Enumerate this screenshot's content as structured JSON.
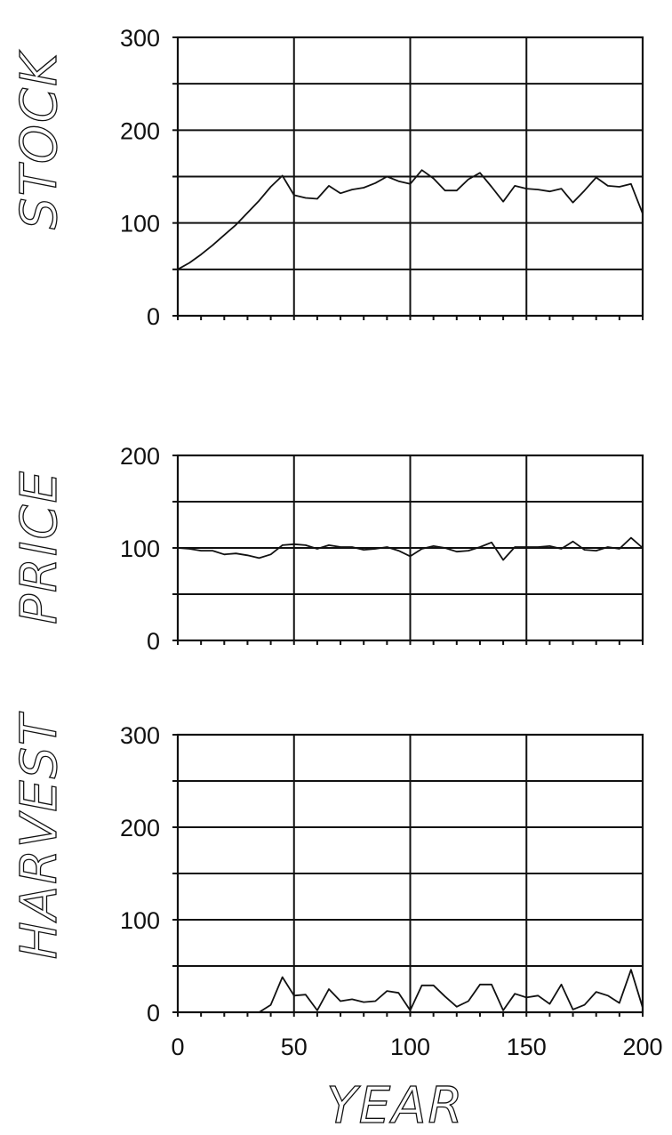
{
  "chart_data": [
    {
      "type": "line",
      "ylabel": "STOCK",
      "xlabel": "",
      "xlim": [
        0,
        200
      ],
      "ylim": [
        0,
        300
      ],
      "yticks": [
        0,
        100,
        200,
        300
      ],
      "grid": true,
      "x": [
        0,
        5,
        10,
        15,
        20,
        25,
        30,
        35,
        40,
        45,
        50,
        55,
        60,
        65,
        70,
        75,
        80,
        85,
        90,
        95,
        100,
        105,
        110,
        115,
        120,
        125,
        130,
        135,
        140,
        145,
        150,
        155,
        160,
        165,
        170,
        175,
        180,
        185,
        190,
        195,
        200
      ],
      "values": [
        50,
        57,
        66,
        76,
        87,
        98,
        111,
        124,
        139,
        151,
        130,
        127,
        126,
        140,
        132,
        136,
        138,
        143,
        150,
        145,
        142,
        157,
        148,
        135,
        135,
        147,
        154,
        139,
        123,
        140,
        137,
        136,
        134,
        137,
        122,
        135,
        149,
        140,
        139,
        142,
        110
      ]
    },
    {
      "type": "line",
      "ylabel": "PRICE",
      "xlabel": "",
      "xlim": [
        0,
        200
      ],
      "ylim": [
        0,
        200
      ],
      "yticks": [
        0,
        100,
        200
      ],
      "grid": true,
      "x": [
        0,
        5,
        10,
        15,
        20,
        25,
        30,
        35,
        40,
        45,
        50,
        55,
        60,
        65,
        70,
        75,
        80,
        85,
        90,
        95,
        100,
        105,
        110,
        115,
        120,
        125,
        130,
        135,
        140,
        145,
        150,
        155,
        160,
        165,
        170,
        175,
        180,
        185,
        190,
        195,
        200
      ],
      "values": [
        100,
        99,
        97,
        97,
        93,
        94,
        92,
        89,
        93,
        103,
        104,
        103,
        99,
        103,
        101,
        101,
        98,
        99,
        101,
        97,
        91,
        99,
        102,
        100,
        96,
        97,
        101,
        106,
        87,
        101,
        101,
        101,
        102,
        99,
        107,
        98,
        97,
        101,
        99,
        111,
        100
      ]
    },
    {
      "type": "line",
      "ylabel": "HARVEST",
      "xlabel": "YEAR",
      "xlim": [
        0,
        200
      ],
      "ylim": [
        0,
        300
      ],
      "yticks": [
        0,
        100,
        200,
        300
      ],
      "xticks": [
        0,
        50,
        100,
        150,
        200
      ],
      "grid": true,
      "x": [
        0,
        5,
        10,
        15,
        20,
        25,
        30,
        35,
        40,
        45,
        50,
        55,
        60,
        65,
        70,
        75,
        80,
        85,
        90,
        95,
        100,
        105,
        110,
        115,
        120,
        125,
        130,
        135,
        140,
        145,
        150,
        155,
        160,
        165,
        170,
        175,
        180,
        185,
        190,
        195,
        200
      ],
      "values": [
        0,
        0,
        0,
        0,
        0,
        0,
        0,
        0,
        8,
        38,
        18,
        19,
        2,
        25,
        12,
        14,
        11,
        12,
        23,
        21,
        2,
        29,
        29,
        17,
        6,
        12,
        30,
        30,
        2,
        20,
        16,
        18,
        9,
        30,
        3,
        8,
        22,
        18,
        10,
        46,
        5
      ]
    }
  ]
}
